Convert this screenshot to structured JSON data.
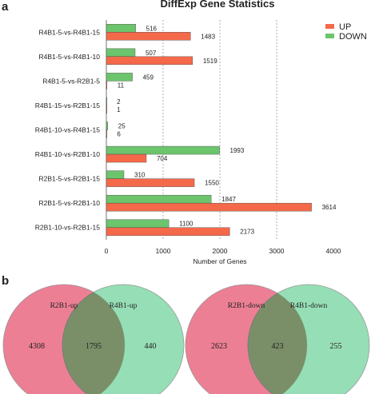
{
  "chart_data": [
    {
      "panel": "a",
      "type": "bar",
      "orientation": "horizontal",
      "title": "DiffExp Gene Statistics",
      "xlabel": "Number of Genes",
      "xlim": [
        0,
        4000
      ],
      "xticks": [
        0,
        1000,
        2000,
        3000,
        4000
      ],
      "grid": "vertical dashed",
      "legend_position": "top-right",
      "categories": [
        "R4B1-5-vs-R4B1-15",
        "R4B1-5-vs-R4B1-10",
        "R4B1-5-vs-R2B1-5",
        "R4B1-15-vs-R2B1-15",
        "R4B1-10-vs-R4B1-15",
        "R4B1-10-vs-R2B1-10",
        "R2B1-5-vs-R2B1-15",
        "R2B1-5-vs-R2B1-10",
        "R2B1-10-vs-R2B1-15"
      ],
      "series": [
        {
          "name": "DOWN",
          "color": "#6cc46c",
          "values": [
            516,
            507,
            459,
            2,
            25,
            1993,
            310,
            1847,
            1100
          ]
        },
        {
          "name": "UP",
          "color": "#f4694a",
          "values": [
            1483,
            1519,
            11,
            1,
            6,
            704,
            1550,
            3614,
            2173
          ]
        }
      ]
    },
    {
      "panel": "b",
      "type": "venn",
      "diagrams": [
        {
          "sets": [
            "R2B1-up",
            "R4B1-up"
          ],
          "left_only": "4308",
          "intersection": "1795",
          "right_only": "440",
          "colors": [
            "#ec7f94",
            "#7fd7a6"
          ]
        },
        {
          "sets": [
            "R2B1-down",
            "R4B1-down"
          ],
          "left_only": "2623",
          "intersection": "423",
          "right_only": "255",
          "colors": [
            "#ec7f94",
            "#7fd7a6"
          ]
        }
      ]
    }
  ]
}
